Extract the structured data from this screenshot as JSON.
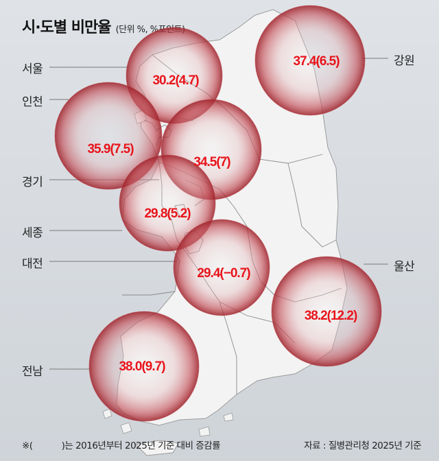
{
  "header": {
    "title": "시·도별 비만율",
    "subtitle": "(단위 %, %포인트)"
  },
  "regions": [
    {
      "name": "서울",
      "rate": 30.2,
      "change": 4.7,
      "value_label": "30.2(4.7)"
    },
    {
      "name": "인천",
      "rate": 35.9,
      "change": 7.5,
      "value_label": "35.9(7.5)"
    },
    {
      "name": "경기",
      "rate": 34.5,
      "change": 7,
      "value_label": "34.5(7)"
    },
    {
      "name": "세종",
      "rate": 29.8,
      "change": 5.2,
      "value_label": "29.8(5.2)"
    },
    {
      "name": "대전",
      "rate": 29.4,
      "change": -0.7,
      "value_label": "29.4(−0.7)"
    },
    {
      "name": "전남",
      "rate": 38.0,
      "change": 9.7,
      "value_label": "38.0(9.7)"
    },
    {
      "name": "강원",
      "rate": 37.4,
      "change": 6.5,
      "value_label": "37.4(6.5)"
    },
    {
      "name": "울산",
      "rate": 38.2,
      "change": 12.2,
      "value_label": "38.2(12.2)"
    }
  ],
  "footer": {
    "note_prefix": "※(",
    "note_suffix": ")는 2016년부터 2025년 기준 대비 증감률",
    "source": "자료 : 질병관리청 2025년 기준"
  },
  "colors": {
    "bubble_center": "#f2f2f2",
    "bubble_edge": "#a82a32",
    "value_text": "#e8141b",
    "land": "#f3f3f3"
  }
}
